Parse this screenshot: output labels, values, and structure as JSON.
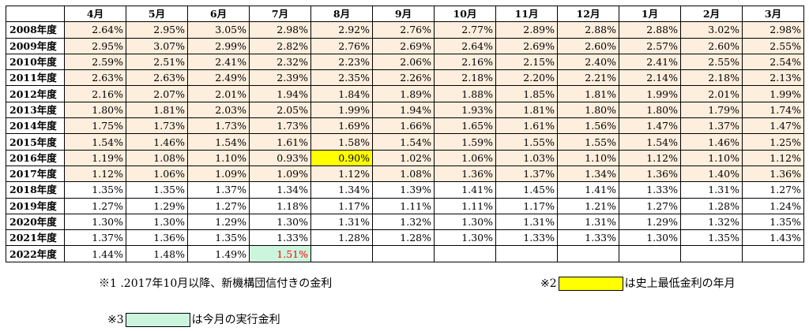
{
  "months": [
    "4月",
    "5月",
    "6月",
    "7月",
    "8月",
    "9月",
    "10月",
    "11月",
    "12月",
    "1月",
    "2月",
    "3月"
  ],
  "rows": [
    {
      "year": "2008年度",
      "values": [
        "2.64%",
        "2.95%",
        "3.05%",
        "2.98%",
        "2.92%",
        "2.76%",
        "2.77%",
        "2.89%",
        "2.88%",
        "2.88%",
        "3.02%",
        "2.98%"
      ]
    },
    {
      "year": "2009年度",
      "values": [
        "2.95%",
        "3.07%",
        "2.99%",
        "2.82%",
        "2.76%",
        "2.69%",
        "2.64%",
        "2.69%",
        "2.60%",
        "2.57%",
        "2.60%",
        "2.55%"
      ]
    },
    {
      "year": "2010年度",
      "values": [
        "2.59%",
        "2.51%",
        "2.41%",
        "2.32%",
        "2.23%",
        "2.06%",
        "2.16%",
        "2.15%",
        "2.40%",
        "2.41%",
        "2.55%",
        "2.54%"
      ]
    },
    {
      "year": "2011年度",
      "values": [
        "2.63%",
        "2.63%",
        "2.49%",
        "2.39%",
        "2.35%",
        "2.26%",
        "2.18%",
        "2.20%",
        "2.21%",
        "2.14%",
        "2.18%",
        "2.13%"
      ]
    },
    {
      "year": "2012年度",
      "values": [
        "2.16%",
        "2.07%",
        "2.01%",
        "1.94%",
        "1.84%",
        "1.89%",
        "1.88%",
        "1.85%",
        "1.81%",
        "1.99%",
        "2.01%",
        "1.99%"
      ]
    },
    {
      "year": "2013年度",
      "values": [
        "1.80%",
        "1.81%",
        "2.03%",
        "2.05%",
        "1.99%",
        "1.94%",
        "1.93%",
        "1.81%",
        "1.80%",
        "1.80%",
        "1.79%",
        "1.74%"
      ]
    },
    {
      "year": "2014年度",
      "values": [
        "1.75%",
        "1.73%",
        "1.73%",
        "1.73%",
        "1.69%",
        "1.66%",
        "1.65%",
        "1.61%",
        "1.56%",
        "1.47%",
        "1.37%",
        "1.47%"
      ]
    },
    {
      "year": "2015年度",
      "values": [
        "1.54%",
        "1.46%",
        "1.54%",
        "1.61%",
        "1.58%",
        "1.54%",
        "1.59%",
        "1.55%",
        "1.55%",
        "1.54%",
        "1.46%",
        "1.25%"
      ]
    },
    {
      "year": "2016年度",
      "values": [
        "1.19%",
        "1.08%",
        "1.10%",
        "0.93%",
        "0.90%",
        "1.02%",
        "1.06%",
        "1.03%",
        "1.10%",
        "1.12%",
        "1.10%",
        "1.12%"
      ]
    },
    {
      "year": "2017年度",
      "values": [
        "1.12%",
        "1.06%",
        "1.09%",
        "1.09%",
        "1.12%",
        "1.08%",
        "1.36%",
        "1.37%",
        "1.34%",
        "1.36%",
        "1.40%",
        "1.36%"
      ]
    },
    {
      "year": "2018年度",
      "values": [
        "1.35%",
        "1.35%",
        "1.37%",
        "1.34%",
        "1.34%",
        "1.39%",
        "1.41%",
        "1.45%",
        "1.41%",
        "1.33%",
        "1.31%",
        "1.27%"
      ]
    },
    {
      "year": "2019年度",
      "values": [
        "1.27%",
        "1.29%",
        "1.27%",
        "1.18%",
        "1.17%",
        "1.11%",
        "1.11%",
        "1.17%",
        "1.21%",
        "1.27%",
        "1.28%",
        "1.24%"
      ]
    },
    {
      "year": "2020年度",
      "values": [
        "1.30%",
        "1.30%",
        "1.29%",
        "1.30%",
        "1.31%",
        "1.32%",
        "1.30%",
        "1.31%",
        "1.31%",
        "1.29%",
        "1.32%",
        "1.35%"
      ]
    },
    {
      "year": "2021年度",
      "values": [
        "1.37%",
        "1.36%",
        "1.35%",
        "1.33%",
        "1.28%",
        "1.28%",
        "1.30%",
        "1.33%",
        "1.33%",
        "1.30%",
        "1.35%",
        "1.43%"
      ]
    },
    {
      "year": "2022年度",
      "values": [
        "1.44%",
        "1.48%",
        "1.49%",
        "1.51%",
        "",
        "",
        "",
        "",
        "",
        "",
        "",
        ""
      ]
    }
  ],
  "shaded_row_count": 10,
  "lowest_cell": {
    "row": 8,
    "col": 4,
    "color": "#ffff00"
  },
  "current_cell": {
    "row": 14,
    "col": 3,
    "color": "#ccf5dd",
    "text_color": "#ff0000"
  },
  "notes": {
    "note1": "※1 .2017年10月以降、新機構団信付きの金利",
    "note2_mark": "※2",
    "note2_text": "は史上最低金利の年月",
    "note3_mark": "※3",
    "note3_text": "は今月の実行金利"
  },
  "colors": {
    "shade": "#fdeedd",
    "low_swatch": "#ffff00",
    "current_swatch": "#ccf5dd"
  }
}
